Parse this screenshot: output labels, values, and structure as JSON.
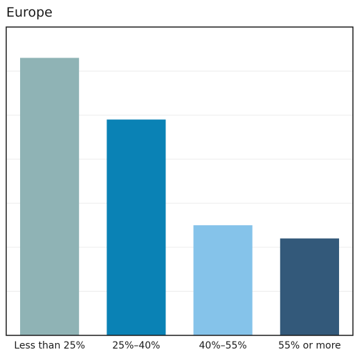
{
  "chart_data": {
    "type": "bar",
    "title": "Europe",
    "categories": [
      "Less than 25%",
      "25%–40%",
      "40%–55%",
      "55% or more"
    ],
    "values": [
      31.5,
      24.5,
      12.5,
      11.0
    ],
    "ylim": [
      0,
      35
    ],
    "grid": true,
    "legend": "none",
    "colors": [
      "#8fb3b5",
      "#0a82b5",
      "#85c3ea",
      "#33597a"
    ]
  }
}
